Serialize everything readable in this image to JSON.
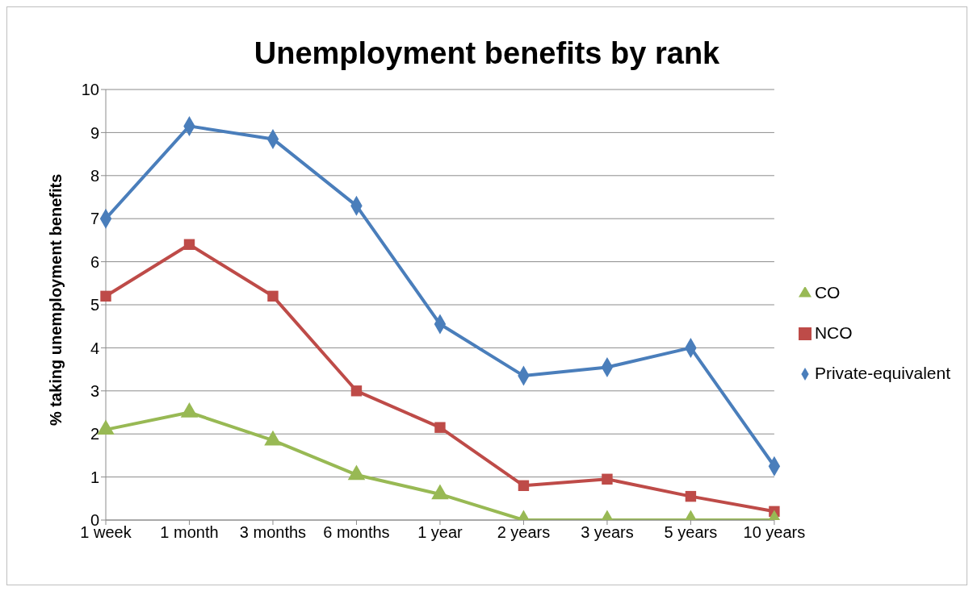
{
  "chart_data": {
    "type": "line",
    "title": "Unemployment benefits by rank",
    "ylabel": "% taking unemployment benefits",
    "categories": [
      "1 week",
      "1 month",
      "3 months",
      "6 months",
      "1 year",
      "2 years",
      "3 years",
      "5 years",
      "10 years"
    ],
    "series": [
      {
        "name": "Private-equivalent",
        "color": "#4a7ebb",
        "marker": "diamond",
        "values": [
          7.0,
          9.15,
          8.85,
          7.3,
          4.55,
          3.35,
          3.55,
          4.0,
          1.25
        ]
      },
      {
        "name": "NCO",
        "color": "#be4b48",
        "marker": "square",
        "values": [
          5.2,
          6.4,
          5.2,
          3.0,
          2.15,
          0.8,
          0.95,
          0.55,
          0.2
        ]
      },
      {
        "name": "CO",
        "color": "#98b954",
        "marker": "triangle",
        "values": [
          2.1,
          2.5,
          1.85,
          1.05,
          0.6,
          0,
          0,
          0,
          0
        ]
      }
    ],
    "ylim": [
      0,
      10
    ],
    "yticks": [
      0,
      1,
      2,
      3,
      4,
      5,
      6,
      7,
      8,
      9,
      10
    ],
    "grid": "y",
    "legend": "right",
    "line_style": "solid"
  }
}
